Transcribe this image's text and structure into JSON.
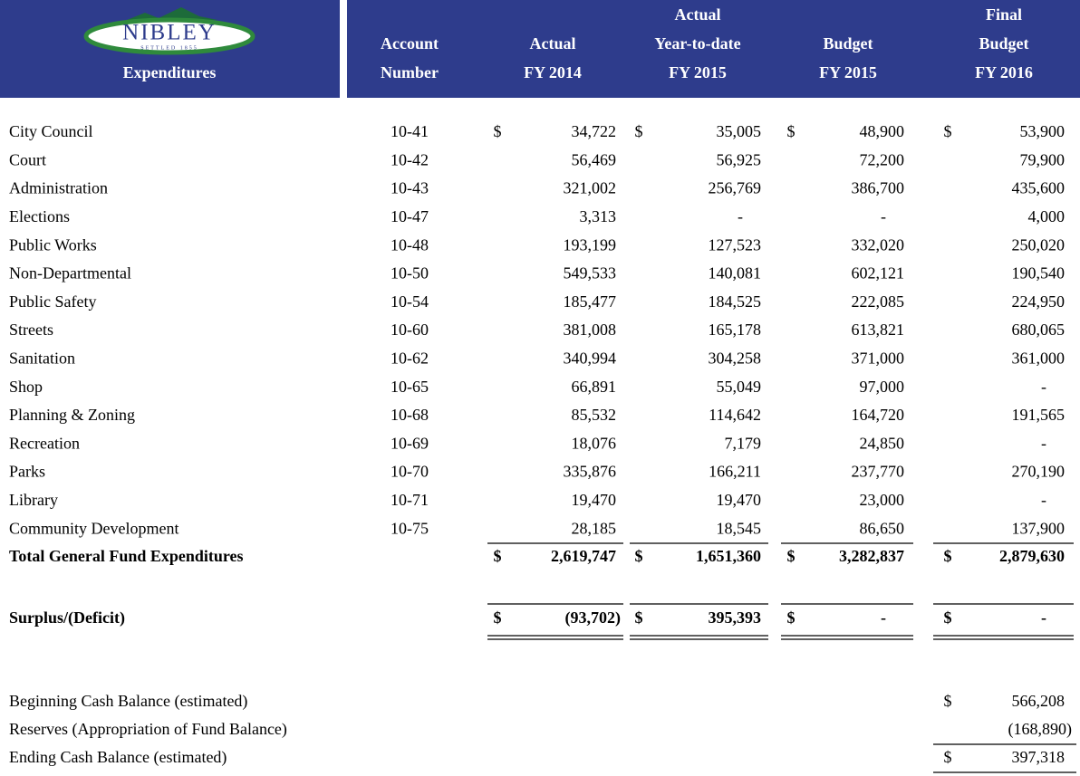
{
  "header": {
    "logo": "NIBLEY",
    "logo_sub": "SETTLED 1855",
    "columns": [
      [
        "Expenditures"
      ],
      [
        "Account",
        "Number"
      ],
      [
        "Actual",
        "FY 2014"
      ],
      [
        "Actual",
        "Year-to-date",
        "FY 2015"
      ],
      [
        "Budget",
        "FY 2015"
      ],
      [
        "Final",
        "Budget",
        "FY 2016"
      ]
    ]
  },
  "rows": [
    {
      "label": "City Council",
      "account": "10-41",
      "currency": "$",
      "values": [
        "34,722",
        "35,005",
        "48,900",
        "53,900"
      ]
    },
    {
      "label": "Court",
      "account": "10-42",
      "values": [
        "56,469",
        "56,925",
        "72,200",
        "79,900"
      ]
    },
    {
      "label": "Administration",
      "account": "10-43",
      "values": [
        "321,002",
        "256,769",
        "386,700",
        "435,600"
      ]
    },
    {
      "label": "Elections",
      "account": "10-47",
      "values": [
        "3,313",
        "-",
        "-",
        "4,000"
      ]
    },
    {
      "label": "Public Works",
      "account": "10-48",
      "values": [
        "193,199",
        "127,523",
        "332,020",
        "250,020"
      ]
    },
    {
      "label": "Non-Departmental",
      "account": "10-50",
      "values": [
        "549,533",
        "140,081",
        "602,121",
        "190,540"
      ]
    },
    {
      "label": "Public Safety",
      "account": "10-54",
      "values": [
        "185,477",
        "184,525",
        "222,085",
        "224,950"
      ]
    },
    {
      "label": "Streets",
      "account": "10-60",
      "values": [
        "381,008",
        "165,178",
        "613,821",
        "680,065"
      ]
    },
    {
      "label": "Sanitation",
      "account": "10-62",
      "values": [
        "340,994",
        "304,258",
        "371,000",
        "361,000"
      ]
    },
    {
      "label": "Shop",
      "account": "10-65",
      "values": [
        "66,891",
        "55,049",
        "97,000",
        "-"
      ]
    },
    {
      "label": "Planning & Zoning",
      "account": "10-68",
      "values": [
        "85,532",
        "114,642",
        "164,720",
        "191,565"
      ]
    },
    {
      "label": "Recreation",
      "account": "10-69",
      "values": [
        "18,076",
        "7,179",
        "24,850",
        "-"
      ]
    },
    {
      "label": "Parks",
      "account": "10-70",
      "values": [
        "335,876",
        "166,211",
        "237,770",
        "270,190"
      ]
    },
    {
      "label": "Library",
      "account": "10-71",
      "values": [
        "19,470",
        "19,470",
        "23,000",
        "-"
      ]
    },
    {
      "label": "Community Development",
      "account": "10-75",
      "values": [
        "28,185",
        "18,545",
        "86,650",
        "137,900"
      ]
    }
  ],
  "total": {
    "label": "Total General Fund Expenditures",
    "currency": "$",
    "values": [
      "2,619,747",
      "1,651,360",
      "3,282,837",
      "2,879,630"
    ]
  },
  "surplus": {
    "label": "Surplus/(Deficit)",
    "currency": "$",
    "values": [
      "(93,702)",
      "395,393",
      "-",
      "-"
    ]
  },
  "cash": [
    {
      "label": "Beginning Cash Balance (estimated)",
      "currency": "$",
      "value": "566,208"
    },
    {
      "label": "Reserves (Appropriation of Fund Balance)",
      "value": "(168,890)"
    },
    {
      "label": "Ending Cash Balance (estimated)",
      "currency": "$",
      "value": "397,318"
    }
  ]
}
